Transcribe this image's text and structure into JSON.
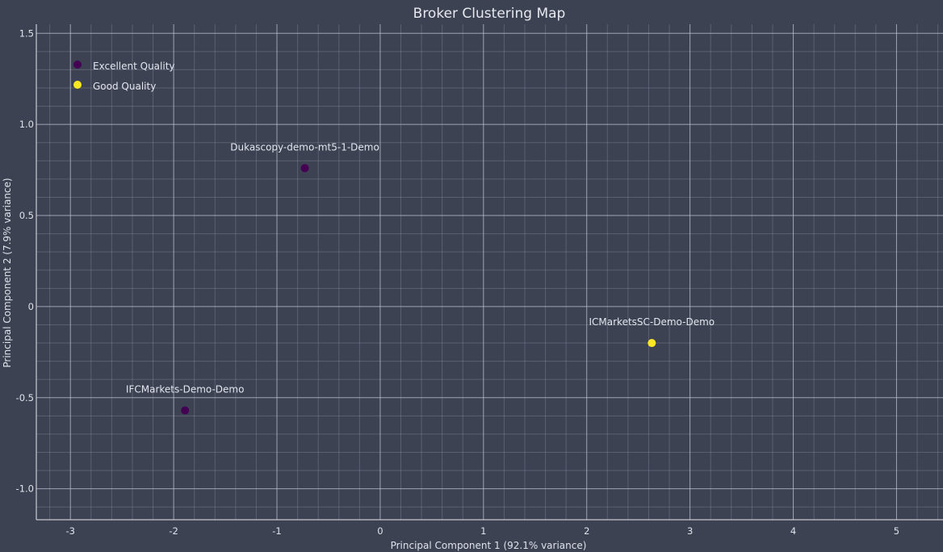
{
  "chart_data": {
    "type": "scatter",
    "title": "Broker Clustering Map",
    "xlabel": "Principal Component 1 (92.1% variance)",
    "ylabel": "Principal Component 2 (7.9% variance)",
    "xlim": [
      -3.33,
      5.45
    ],
    "ylim": [
      -1.17,
      1.55
    ],
    "x_ticks": [
      -3,
      -2,
      -1,
      0,
      1,
      2,
      3,
      4,
      5
    ],
    "y_ticks": [
      -1.0,
      -0.5,
      0,
      0.5,
      1.0,
      1.5
    ],
    "x_tick_labels": [
      "-3",
      "-2",
      "-1",
      "0",
      "1",
      "2",
      "3",
      "4",
      "5"
    ],
    "y_tick_labels": [
      "-1.0",
      "-0.5",
      "0",
      "0.5",
      "1.0",
      "1.5"
    ],
    "grid": true,
    "legend_position": "top-left",
    "series": [
      {
        "name": "Excellent Quality",
        "color": "#440154",
        "points": [
          {
            "label": "Dukascopy-demo-mt5-1-Demo",
            "x": -0.73,
            "y": 0.76
          },
          {
            "label": "IFCMarkets-Demo-Demo",
            "x": -1.89,
            "y": -0.57
          }
        ]
      },
      {
        "name": "Good Quality",
        "color": "#fde725",
        "points": [
          {
            "label": "ICMarketsSC-Demo-Demo",
            "x": 2.63,
            "y": -0.2
          }
        ]
      }
    ]
  }
}
